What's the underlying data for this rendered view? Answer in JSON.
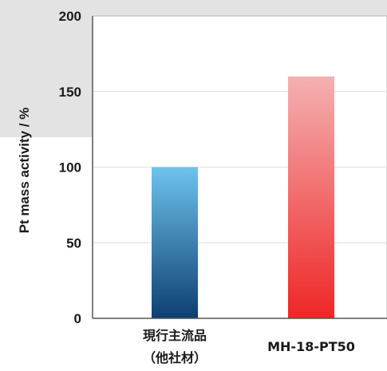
{
  "chart_data": {
    "type": "bar",
    "categories": [
      [
        "現行主流品",
        "（他社材）"
      ],
      [
        "MH-18-PT50"
      ]
    ],
    "values": [
      100,
      160
    ],
    "title": "",
    "xlabel": "",
    "ylabel": "Pt mass activity / %",
    "ylim": [
      0,
      200
    ],
    "yticks": [
      0,
      50,
      100,
      150,
      200
    ],
    "grid": true,
    "bar_gradients": [
      {
        "top": "#6ec3ee",
        "bottom": "#0e3f72"
      },
      {
        "top": "#f4b1b1",
        "bottom": "#ef2626"
      }
    ],
    "background_band": "#e3e3e3",
    "plot_border": "#b5b5b5",
    "grid_color": "#e2e2e2"
  }
}
